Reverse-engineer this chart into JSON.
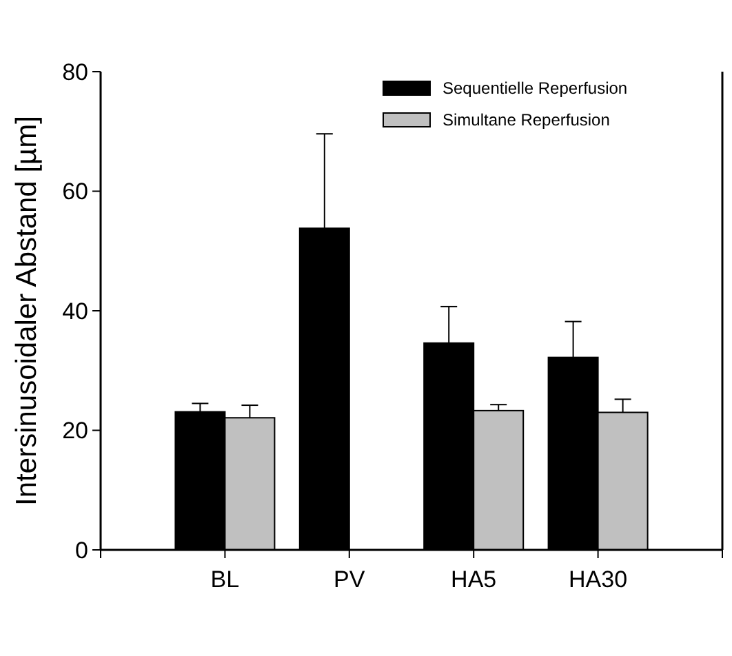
{
  "chart_data": {
    "type": "bar",
    "ylabel": "Intersinusoidaler Abstand [µm]",
    "categories": [
      "BL",
      "PV",
      "HA5",
      "HA30"
    ],
    "series": [
      {
        "name": "Sequentielle Reperfusion",
        "color": "#000000",
        "values": [
          23.1,
          53.8,
          34.6,
          32.2
        ],
        "errors": [
          [
            23.1,
            24.5
          ],
          [
            53.8,
            69.6
          ],
          [
            34.6,
            40.7
          ],
          [
            32.2,
            38.2
          ]
        ]
      },
      {
        "name": "Simultane Reperfusion",
        "color": "#c0c0c0",
        "values": [
          22.1,
          null,
          23.3,
          23.0
        ],
        "errors": [
          [
            22.1,
            24.2
          ],
          null,
          [
            23.3,
            24.3
          ],
          [
            23.0,
            25.2
          ]
        ]
      }
    ],
    "ylim": [
      0,
      80
    ],
    "yticks": [
      0,
      20,
      40,
      60,
      80
    ],
    "legend": "top right",
    "grid": false
  }
}
